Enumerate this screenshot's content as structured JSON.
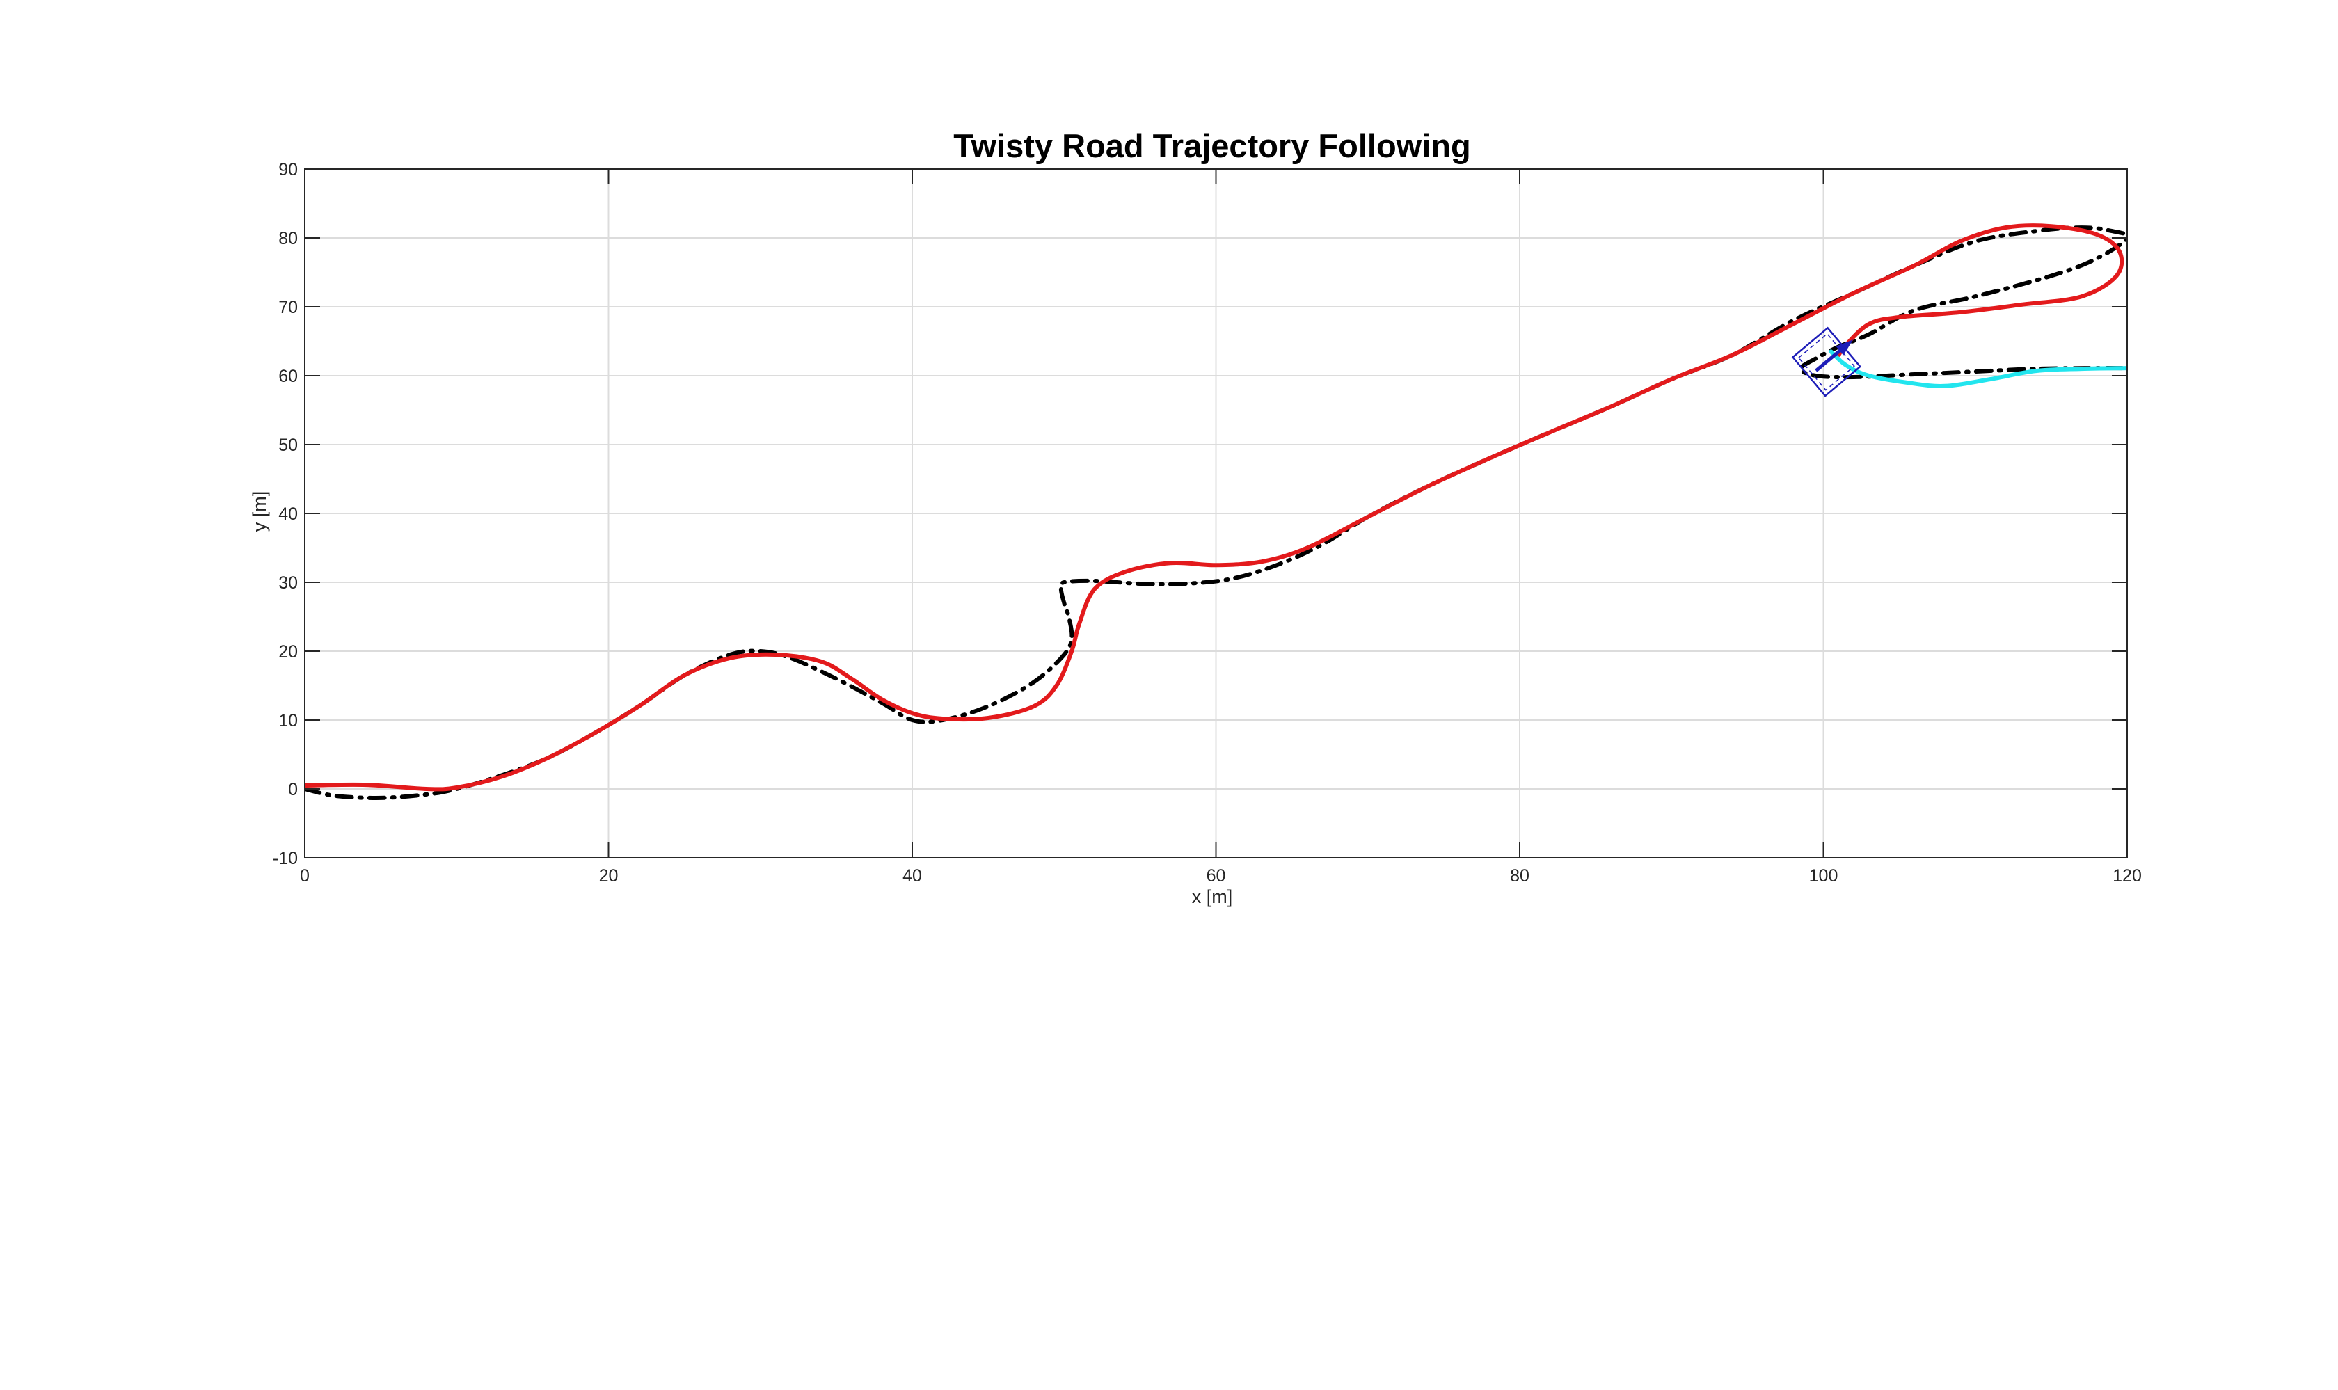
{
  "chart_data": {
    "type": "line",
    "title": "Twisty Road Trajectory Following",
    "xlabel": "x [m]",
    "ylabel": "y [m]",
    "xlim": [
      0,
      120
    ],
    "ylim": [
      -10,
      90
    ],
    "xticks": [
      0,
      20,
      40,
      60,
      80,
      100,
      120
    ],
    "yticks": [
      -10,
      0,
      10,
      20,
      30,
      40,
      50,
      60,
      70,
      80,
      90
    ],
    "grid": true,
    "legend": "none",
    "colors": {
      "reference": "#000000",
      "actual": "#e31a1c",
      "predicted": "#22e5ee",
      "vehicle": "#1d1db8"
    },
    "series": [
      {
        "style": "dash-dot",
        "color": "#000000",
        "points": [
          [
            0,
            0
          ],
          [
            2,
            -1
          ],
          [
            5,
            -1.3
          ],
          [
            8,
            -0.8
          ],
          [
            10,
            0
          ],
          [
            13,
            2
          ],
          [
            16,
            4.5
          ],
          [
            19,
            8
          ],
          [
            22,
            12
          ],
          [
            25,
            16.5
          ],
          [
            28,
            19.5
          ],
          [
            30,
            20
          ],
          [
            32,
            19
          ],
          [
            35,
            16
          ],
          [
            38,
            12.5
          ],
          [
            40,
            10
          ],
          [
            42,
            10
          ],
          [
            45,
            12
          ],
          [
            48,
            15.5
          ],
          [
            50,
            19.5
          ],
          [
            50.5,
            22
          ],
          [
            50.3,
            25
          ],
          [
            50,
            27
          ],
          [
            49.8,
            29
          ],
          [
            50,
            30
          ],
          [
            52,
            30.2
          ],
          [
            55,
            29.8
          ],
          [
            58,
            29.8
          ],
          [
            61,
            30.5
          ],
          [
            64,
            32.5
          ],
          [
            67,
            35.5
          ],
          [
            70,
            39.5
          ],
          [
            74,
            44
          ],
          [
            78,
            48
          ],
          [
            82,
            51.8
          ],
          [
            86,
            55.5
          ],
          [
            90,
            59.5
          ],
          [
            94,
            63
          ],
          [
            98,
            68
          ],
          [
            102,
            72
          ],
          [
            106,
            76
          ],
          [
            110,
            79.5
          ],
          [
            114,
            81
          ],
          [
            117,
            81.5
          ],
          [
            119,
            81
          ],
          [
            120,
            80
          ],
          [
            118,
            77
          ],
          [
            115,
            74.5
          ],
          [
            110,
            71.5
          ],
          [
            106,
            69.5
          ],
          [
            103,
            66
          ],
          [
            101,
            64.2
          ],
          [
            99.5,
            62.5
          ],
          [
            98.5,
            61
          ],
          [
            99.5,
            60
          ],
          [
            102,
            59.8
          ],
          [
            106,
            60.2
          ],
          [
            110,
            60.6
          ],
          [
            114,
            61
          ],
          [
            118,
            61.1
          ],
          [
            120,
            61.1
          ]
        ]
      },
      {
        "style": "solid",
        "color": "#e31a1c",
        "points": [
          [
            0,
            0.5
          ],
          [
            4,
            0.6
          ],
          [
            8,
            0
          ],
          [
            10,
            0.2
          ],
          [
            13,
            1.8
          ],
          [
            16,
            4.5
          ],
          [
            19,
            8
          ],
          [
            22,
            12
          ],
          [
            25,
            16.5
          ],
          [
            28,
            19
          ],
          [
            31,
            19.5
          ],
          [
            34,
            18.5
          ],
          [
            36,
            16
          ],
          [
            38,
            13
          ],
          [
            40,
            11
          ],
          [
            42,
            10.2
          ],
          [
            45,
            10.3
          ],
          [
            48,
            12
          ],
          [
            49.5,
            15
          ],
          [
            50.5,
            20
          ],
          [
            51,
            24
          ],
          [
            52,
            29
          ],
          [
            54,
            31.5
          ],
          [
            57,
            32.8
          ],
          [
            60,
            32.5
          ],
          [
            63,
            33
          ],
          [
            66,
            35
          ],
          [
            70,
            39.5
          ],
          [
            74,
            44
          ],
          [
            78,
            48
          ],
          [
            82,
            51.8
          ],
          [
            86,
            55.5
          ],
          [
            90,
            59.5
          ],
          [
            94,
            63
          ],
          [
            98,
            67.5
          ],
          [
            102,
            72
          ],
          [
            106,
            76
          ],
          [
            109,
            79.5
          ],
          [
            112,
            81.5
          ],
          [
            115,
            81.7
          ],
          [
            118,
            80.5
          ],
          [
            119.5,
            78
          ],
          [
            119.3,
            74.5
          ],
          [
            117,
            71.5
          ],
          [
            113,
            70.3
          ],
          [
            109,
            69.2
          ],
          [
            105,
            68.5
          ],
          [
            103,
            67.5
          ],
          [
            101.5,
            64.5
          ],
          [
            101,
            63
          ]
        ]
      },
      {
        "style": "solid",
        "color": "#22e5ee",
        "points": [
          [
            100.5,
            63.5
          ],
          [
            101.5,
            61.5
          ],
          [
            103,
            60
          ],
          [
            105.5,
            59
          ],
          [
            108,
            58.5
          ],
          [
            111,
            59.5
          ],
          [
            114,
            60.7
          ],
          [
            117,
            61
          ],
          [
            120,
            61.1
          ]
        ]
      }
    ],
    "vehicle": {
      "x": 100.2,
      "y": 62,
      "heading_deg": 40,
      "length_m": 3.0,
      "width_m": 3.5
    }
  }
}
